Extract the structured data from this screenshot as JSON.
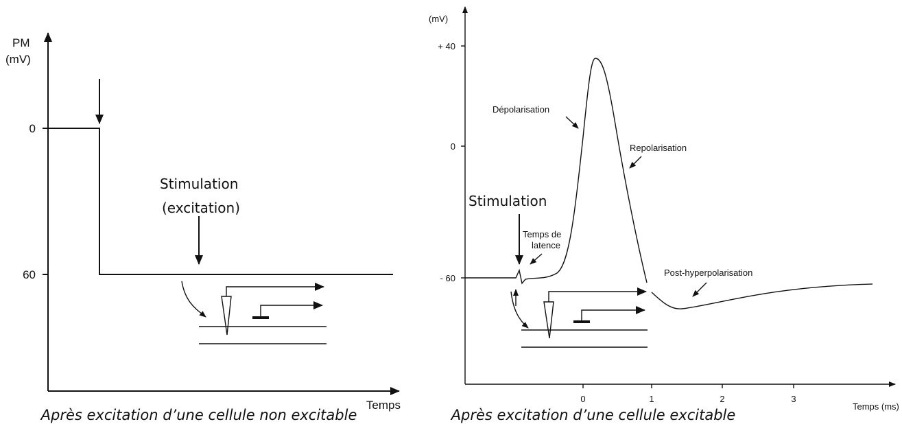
{
  "left": {
    "y_label_lines": [
      "PM",
      "(mV)"
    ],
    "ticks": [
      "0",
      "60"
    ],
    "x_label": "Temps",
    "stimulation_lines": [
      "Stimulation",
      "(excitation)"
    ],
    "caption": "Après excitation d’une cellule non excitable"
  },
  "right": {
    "y_label": "(mV)",
    "yticks": [
      "+ 40",
      "0",
      "- 60"
    ],
    "xticks": [
      "0",
      "1",
      "2",
      "3"
    ],
    "x_label": "Temps (ms)",
    "stimulation": "Stimulation",
    "depolarisation": "Dépolarisation",
    "repolarisation": "Repolarisation",
    "latence_lines": [
      "Temps de",
      "latence"
    ],
    "post_hyperpolarisation": "Post-hyperpolarisation",
    "caption": "Après excitation d’une cellule excitable"
  }
}
